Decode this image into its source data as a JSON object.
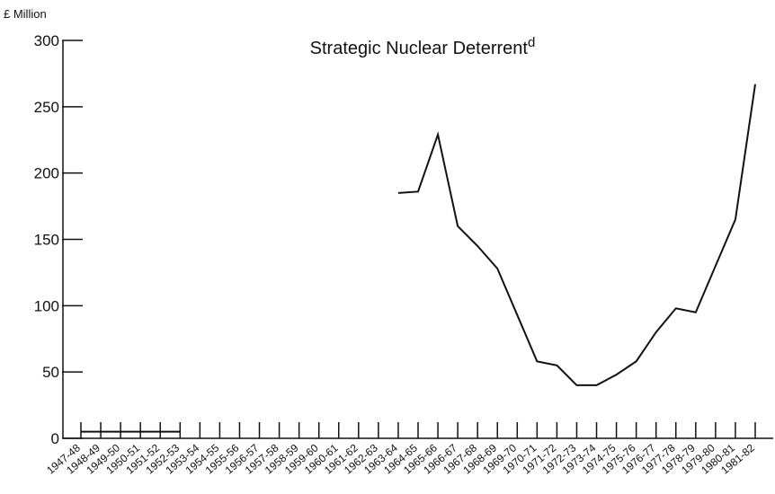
{
  "chart_data": {
    "type": "line",
    "title": "Strategic Nuclear Deterrent",
    "title_superscript": "d",
    "y_label": "£ Million",
    "categories": [
      "1947-48",
      "1948-49",
      "1949-50",
      "1950-51",
      "1951-52",
      "1952-53",
      "1953-54",
      "1954-55",
      "1955-56",
      "1956-57",
      "1957-58",
      "1958-59",
      "1959-60",
      "1960-61",
      "1961-62",
      "1962-63",
      "1963-64",
      "1964-65",
      "1965-66",
      "1966-67",
      "1967-68",
      "1968-69",
      "1969-70",
      "1970-71",
      "1971-72",
      "1972-73",
      "1973-74",
      "1974-75",
      "1975-76",
      "1976-77",
      "1977-78",
      "1978-79",
      "1979-80",
      "1980-81",
      "1981-82"
    ],
    "values": [
      5,
      5,
      5,
      5,
      5,
      5,
      null,
      null,
      null,
      null,
      null,
      null,
      null,
      null,
      null,
      null,
      185,
      186,
      229,
      160,
      145,
      128,
      93,
      58,
      55,
      40,
      40,
      48,
      58,
      80,
      98,
      95,
      130,
      165,
      267
    ],
    "color": "#111111",
    "ylim": [
      0,
      300
    ],
    "yticks": [
      0,
      50,
      100,
      150,
      200,
      250,
      300
    ],
    "grid": false
  }
}
